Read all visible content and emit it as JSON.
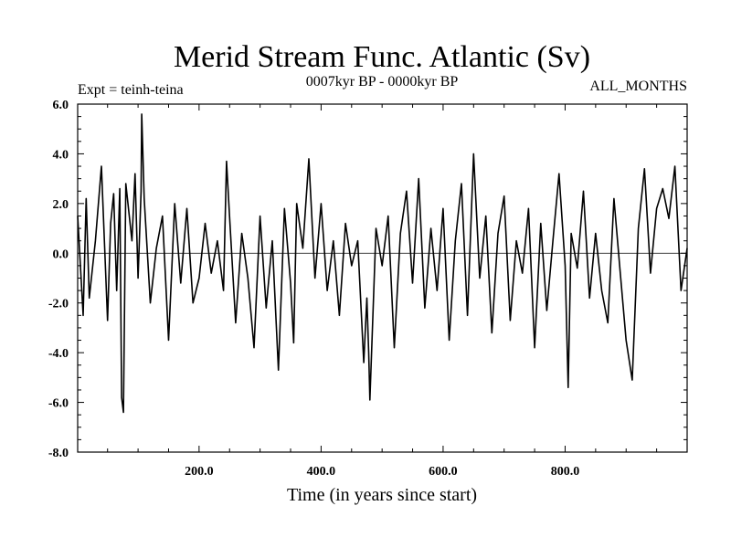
{
  "chart_data": {
    "type": "line",
    "title": "Merid Stream Func. Atlantic (Sv)",
    "subtitle_left": "Expt = teinh-teina",
    "subtitle_center": "0007kyr BP - 0000kyr BP",
    "subtitle_right": "ALL_MONTHS",
    "xlabel": "Time (in years since start)",
    "ylabel": "",
    "xlim": [
      1,
      1000
    ],
    "ylim": [
      -8.0,
      6.0
    ],
    "xticks": [
      200.0,
      400.0,
      600.0,
      800.0
    ],
    "xtick_labels": [
      "200.0",
      "400.0",
      "600.0",
      "800.0"
    ],
    "yticks": [
      -8.0,
      -6.0,
      -4.0,
      -2.0,
      0.0,
      2.0,
      4.0,
      6.0
    ],
    "ytick_labels": [
      "-8.0",
      "-6.0",
      "-4.0",
      "-2.0",
      "0.0",
      "2.0",
      "4.0",
      "6.0"
    ],
    "zero_line": true,
    "grid": false,
    "series": [
      {
        "name": "Merid Stream Func. Atlantic",
        "x": [
          1,
          10,
          15,
          20,
          30,
          40,
          50,
          55,
          60,
          65,
          70,
          73,
          76,
          80,
          90,
          95,
          100,
          105,
          106,
          110,
          120,
          130,
          140,
          150,
          160,
          170,
          180,
          190,
          200,
          210,
          220,
          230,
          240,
          245,
          250,
          260,
          270,
          280,
          290,
          300,
          310,
          320,
          330,
          340,
          350,
          355,
          360,
          370,
          380,
          390,
          400,
          410,
          420,
          430,
          440,
          450,
          460,
          470,
          475,
          478,
          480,
          490,
          500,
          510,
          520,
          530,
          540,
          550,
          560,
          570,
          580,
          590,
          600,
          610,
          620,
          630,
          640,
          650,
          660,
          670,
          680,
          690,
          700,
          710,
          720,
          730,
          740,
          750,
          760,
          770,
          780,
          790,
          800,
          805,
          810,
          820,
          830,
          840,
          850,
          860,
          870,
          880,
          890,
          900,
          910,
          920,
          930,
          940,
          950,
          960,
          970,
          980,
          990,
          1000
        ],
        "values": [
          1.5,
          -2.5,
          2.2,
          -1.8,
          0.5,
          3.5,
          -2.7,
          1.2,
          2.4,
          -1.5,
          2.6,
          -5.8,
          -6.4,
          2.8,
          0.5,
          3.2,
          -1.0,
          2.5,
          5.6,
          2.2,
          -2.0,
          0.2,
          1.5,
          -3.5,
          2.0,
          -1.2,
          1.8,
          -2.0,
          -1.0,
          1.2,
          -0.8,
          0.5,
          -1.5,
          3.7,
          1.5,
          -2.8,
          0.8,
          -1.0,
          -3.8,
          1.5,
          -2.2,
          0.5,
          -4.7,
          1.8,
          -1.2,
          -3.6,
          2.0,
          0.2,
          3.8,
          -1.0,
          2.0,
          -1.5,
          0.5,
          -2.5,
          1.2,
          -0.5,
          0.5,
          -4.4,
          -1.8,
          -4.0,
          -5.9,
          1.0,
          -0.5,
          1.5,
          -3.8,
          0.8,
          2.5,
          -1.2,
          3.0,
          -2.2,
          1.0,
          -1.5,
          1.8,
          -3.5,
          0.5,
          2.8,
          -2.5,
          4.0,
          -1.0,
          1.5,
          -3.2,
          0.8,
          2.3,
          -2.7,
          0.5,
          -0.8,
          1.8,
          -3.8,
          1.2,
          -2.3,
          0.5,
          3.2,
          -0.5,
          -5.4,
          0.8,
          -0.6,
          2.5,
          -1.8,
          0.8,
          -1.5,
          -2.8,
          2.2,
          -0.7,
          -3.5,
          -5.1,
          1.0,
          3.4,
          -0.8,
          1.8,
          2.6,
          1.4,
          3.5,
          -1.5,
          0.2
        ]
      }
    ]
  }
}
